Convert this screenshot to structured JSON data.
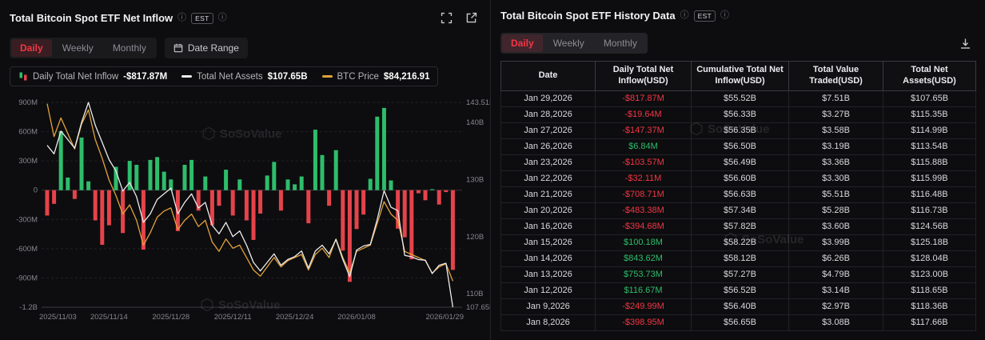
{
  "watermark": "SoSoValue",
  "colors": {
    "accent_red": "#f23645",
    "bar_green": "#2ebd6b",
    "bar_red": "#e5434b",
    "btc_line": "#e2a23c",
    "assets_line": "#ececec"
  },
  "left_panel": {
    "title": "Total Bitcoin Spot ETF Net Inflow",
    "est_badge": "EST",
    "tabs": {
      "daily": "Daily",
      "weekly": "Weekly",
      "monthly": "Monthly"
    },
    "active_tab": "Daily",
    "date_range_label": "Date Range",
    "legend": {
      "inflow_label": "Daily Total Net Inflow",
      "inflow_value": "-$817.87M",
      "assets_label": "Total Net Assets",
      "assets_value": "$107.65B",
      "btc_label": "BTC Price",
      "btc_value": "$84,216.91"
    }
  },
  "chart_data": {
    "type": "bar",
    "title": "Total Bitcoin Spot ETF Net Inflow",
    "series": [
      {
        "name": "Daily Total Net Inflow",
        "type": "bar",
        "axis": "left",
        "unit": "USD millions"
      },
      {
        "name": "Total Net Assets",
        "type": "line",
        "axis": "right",
        "unit": "USD billions",
        "color": "#ececec"
      },
      {
        "name": "BTC Price",
        "type": "line",
        "axis": "hidden",
        "unit": "USD thousands",
        "color": "#e2a23c"
      }
    ],
    "point_format": [
      "date",
      "daily_net_inflow_musd",
      "total_net_assets_busd",
      "btc_price_kusd"
    ],
    "points": [
      [
        "2025/11/03",
        -260,
        136.0,
        112.8
      ],
      [
        "2025/11/04",
        -140,
        134.5,
        107.5
      ],
      [
        "2025/11/05",
        605,
        138.5,
        110.5
      ],
      [
        "2025/11/06",
        130,
        137.0,
        108.0
      ],
      [
        "2025/11/07",
        -90,
        135.5,
        105.5
      ],
      [
        "2025/11/10",
        540,
        140.0,
        109.5
      ],
      [
        "2025/11/11",
        90,
        143.51,
        111.8
      ],
      [
        "2025/11/12",
        -310,
        139.5,
        107.0
      ],
      [
        "2025/11/13",
        -560,
        136.5,
        104.0
      ],
      [
        "2025/11/14",
        -360,
        133.5,
        100.5
      ],
      [
        "2025/11/17",
        240,
        131.5,
        98.0
      ],
      [
        "2025/11/18",
        -440,
        128.0,
        95.0
      ],
      [
        "2025/11/19",
        300,
        129.5,
        96.5
      ],
      [
        "2025/11/20",
        260,
        127.0,
        94.0
      ],
      [
        "2025/11/21",
        -610,
        122.5,
        90.0
      ],
      [
        "2025/11/24",
        310,
        124.0,
        92.0
      ],
      [
        "2025/11/25",
        340,
        126.5,
        94.5
      ],
      [
        "2025/11/26",
        190,
        127.5,
        95.5
      ],
      [
        "2025/11/28",
        110,
        128.5,
        96.0
      ],
      [
        "2025/12/01",
        -420,
        124.0,
        92.5
      ],
      [
        "2025/12/02",
        260,
        126.0,
        94.0
      ],
      [
        "2025/12/03",
        310,
        127.5,
        95.0
      ],
      [
        "2025/12/04",
        -210,
        125.0,
        93.0
      ],
      [
        "2025/12/05",
        140,
        126.0,
        94.0
      ],
      [
        "2025/12/08",
        -360,
        122.0,
        90.5
      ],
      [
        "2025/12/09",
        -160,
        120.5,
        89.0
      ],
      [
        "2025/12/10",
        210,
        122.5,
        91.0
      ],
      [
        "2025/12/11",
        -260,
        120.0,
        89.5
      ],
      [
        "2025/12/12",
        110,
        121.0,
        90.0
      ],
      [
        "2025/12/15",
        -310,
        118.5,
        88.0
      ],
      [
        "2025/12/16",
        -510,
        115.5,
        86.0
      ],
      [
        "2025/12/17",
        -240,
        114.0,
        85.0
      ],
      [
        "2025/12/18",
        150,
        115.5,
        86.5
      ],
      [
        "2025/12/19",
        290,
        117.0,
        88.0
      ],
      [
        "2025/12/22",
        -210,
        115.0,
        86.5
      ],
      [
        "2025/12/23",
        110,
        116.0,
        87.5
      ],
      [
        "2025/12/24",
        60,
        116.5,
        88.0
      ],
      [
        "2025/12/26",
        140,
        117.5,
        88.5
      ],
      [
        "2025/12/29",
        -340,
        114.5,
        86.0
      ],
      [
        "2025/12/30",
        620,
        117.5,
        88.5
      ],
      [
        "2025/12/31",
        360,
        118.5,
        89.5
      ],
      [
        "2026/01/02",
        -160,
        117.0,
        88.0
      ],
      [
        "2026/01/05",
        410,
        119.5,
        91.0
      ],
      [
        "2026/01/06",
        -620,
        116.0,
        88.0
      ],
      [
        "2026/01/07",
        -940,
        113.0,
        85.5
      ],
      [
        "2026/01/08",
        -398.95,
        117.66,
        89.0
      ],
      [
        "2026/01/09",
        -249.99,
        118.36,
        89.5
      ],
      [
        "2026/01/12",
        116.67,
        118.65,
        90.0
      ],
      [
        "2026/01/13",
        753.73,
        123.0,
        93.5
      ],
      [
        "2026/01/14",
        843.62,
        128.04,
        97.0
      ],
      [
        "2026/01/15",
        100.18,
        125.18,
        95.0
      ],
      [
        "2026/01/16",
        -394.68,
        124.56,
        94.0
      ],
      [
        "2026/01/20",
        -483.38,
        116.73,
        89.0
      ],
      [
        "2026/01/21",
        -708.71,
        116.48,
        88.5
      ],
      [
        "2026/01/22",
        -32.11,
        115.99,
        88.0
      ],
      [
        "2026/01/23",
        -103.57,
        115.88,
        87.5
      ],
      [
        "2026/01/26",
        6.84,
        113.54,
        85.5
      ],
      [
        "2026/01/27",
        -147.37,
        114.99,
        86.5
      ],
      [
        "2026/01/28",
        -19.64,
        115.35,
        87.0
      ],
      [
        "2026/01/29",
        -817.87,
        107.65,
        84.21691
      ]
    ],
    "left_range": [
      -1200,
      900
    ],
    "right_range": [
      107.65,
      143.51
    ],
    "btc_range": [
      80,
      113
    ],
    "left_ticks": [
      {
        "v": 900,
        "label": "900M"
      },
      {
        "v": 600,
        "label": "600M"
      },
      {
        "v": 300,
        "label": "300M"
      },
      {
        "v": 0,
        "label": "0"
      },
      {
        "v": -300,
        "label": "-300M"
      },
      {
        "v": -600,
        "label": "-600M"
      },
      {
        "v": -900,
        "label": "-900M"
      },
      {
        "v": -1200,
        "label": "-1.2B"
      }
    ],
    "right_ticks": [
      {
        "v": 143.51,
        "label": "143.51B"
      },
      {
        "v": 140,
        "label": "140B"
      },
      {
        "v": 130,
        "label": "130B"
      },
      {
        "v": 120,
        "label": "120B"
      },
      {
        "v": 110,
        "label": "110B"
      },
      {
        "v": 107.65,
        "label": "107.65B"
      }
    ],
    "x_ticks": [
      {
        "i": 0,
        "label": "2025/11/03"
      },
      {
        "i": 9,
        "label": "2025/11/14"
      },
      {
        "i": 18,
        "label": "2025/11/28"
      },
      {
        "i": 27,
        "label": "2025/12/11"
      },
      {
        "i": 36,
        "label": "2025/12/24"
      },
      {
        "i": 45,
        "label": "2026/01/08"
      },
      {
        "i": 59,
        "label": "2026/01/29"
      }
    ],
    "grid": true,
    "legend_position": "top"
  },
  "right_panel": {
    "title": "Total Bitcoin Spot ETF History Data",
    "est_badge": "EST",
    "tabs": {
      "daily": "Daily",
      "weekly": "Weekly",
      "monthly": "Monthly"
    },
    "active_tab": "Daily",
    "table": {
      "headers": [
        "Date",
        "Daily Total Net Inflow(USD)",
        "Cumulative Total Net Inflow(USD)",
        "Total Value Traded(USD)",
        "Total Net Assets(USD)"
      ],
      "rows": [
        [
          "Jan 29,2026",
          "-$817.87M",
          "$55.52B",
          "$7.51B",
          "$107.65B"
        ],
        [
          "Jan 28,2026",
          "-$19.64M",
          "$56.33B",
          "$3.27B",
          "$115.35B"
        ],
        [
          "Jan 27,2026",
          "-$147.37M",
          "$56.35B",
          "$3.58B",
          "$114.99B"
        ],
        [
          "Jan 26,2026",
          "$6.84M",
          "$56.50B",
          "$3.19B",
          "$113.54B"
        ],
        [
          "Jan 23,2026",
          "-$103.57M",
          "$56.49B",
          "$3.36B",
          "$115.88B"
        ],
        [
          "Jan 22,2026",
          "-$32.11M",
          "$56.60B",
          "$3.30B",
          "$115.99B"
        ],
        [
          "Jan 21,2026",
          "-$708.71M",
          "$56.63B",
          "$5.51B",
          "$116.48B"
        ],
        [
          "Jan 20,2026",
          "-$483.38M",
          "$57.34B",
          "$5.28B",
          "$116.73B"
        ],
        [
          "Jan 16,2026",
          "-$394.68M",
          "$57.82B",
          "$3.60B",
          "$124.56B"
        ],
        [
          "Jan 15,2026",
          "$100.18M",
          "$58.22B",
          "$3.99B",
          "$125.18B"
        ],
        [
          "Jan 14,2026",
          "$843.62M",
          "$58.12B",
          "$6.26B",
          "$128.04B"
        ],
        [
          "Jan 13,2026",
          "$753.73M",
          "$57.27B",
          "$4.79B",
          "$123.00B"
        ],
        [
          "Jan 12,2026",
          "$116.67M",
          "$56.52B",
          "$3.14B",
          "$118.65B"
        ],
        [
          "Jan 9,2026",
          "-$249.99M",
          "$56.40B",
          "$2.97B",
          "$118.36B"
        ],
        [
          "Jan 8,2026",
          "-$398.95M",
          "$56.65B",
          "$3.08B",
          "$117.66B"
        ]
      ]
    }
  }
}
